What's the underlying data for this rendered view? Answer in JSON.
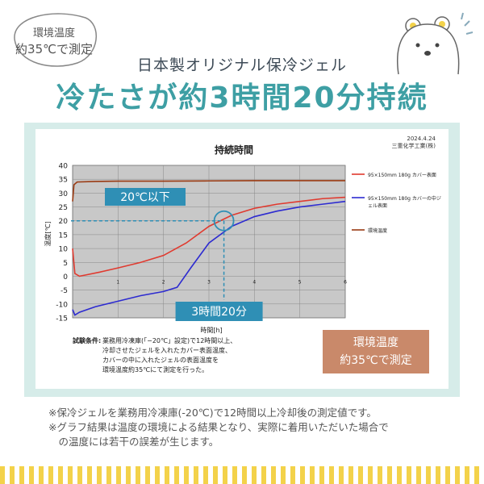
{
  "badge": {
    "line1": "環境温度",
    "line2": "約35℃で測定"
  },
  "header": {
    "subtitle": "日本製オリジナル保冷ジェル",
    "title": "冷たさが約3時間20分持続"
  },
  "chart_data": {
    "type": "line",
    "title": "持続時間",
    "date": "2024.4.24",
    "company": "三重化学工業(株)",
    "xlabel": "時間[h]",
    "ylabel": "温度[℃]",
    "xlim": [
      0,
      6
    ],
    "ylim": [
      -15,
      40
    ],
    "xticks": [
      1,
      2,
      3,
      4,
      5,
      6
    ],
    "yticks": [
      -15,
      -10,
      -5,
      0,
      5,
      10,
      15,
      20,
      25,
      30,
      35,
      40
    ],
    "grid": true,
    "legend_position": "right",
    "series": [
      {
        "name": "95×150mm 180g カバー表面",
        "color": "#e03a2f",
        "x": [
          0,
          0.05,
          0.15,
          0.3,
          0.6,
          1.0,
          1.5,
          2.0,
          2.5,
          3.0,
          3.5,
          4.0,
          4.5,
          5.0,
          5.5,
          6.0
        ],
        "y": [
          10,
          1,
          0,
          0.5,
          1.5,
          3,
          5,
          7.5,
          12,
          18,
          22,
          24.5,
          26,
          27,
          28,
          28.5
        ]
      },
      {
        "name": "95×150mm 180g カバーの中ジェル表面",
        "color": "#2d2bd0",
        "x": [
          0,
          0.05,
          0.15,
          0.5,
          1.0,
          1.5,
          2.0,
          2.3,
          2.6,
          3.0,
          3.5,
          4.0,
          4.5,
          5.0,
          5.5,
          6.0
        ],
        "y": [
          -12,
          -14,
          -13,
          -11,
          -9,
          -7,
          -5.5,
          -4,
          3,
          12,
          18,
          21.5,
          23.5,
          25,
          26,
          27
        ]
      },
      {
        "name": "環境温度",
        "color": "#9a3a12",
        "x": [
          0,
          0.03,
          0.1,
          0.5,
          1.0,
          2.0,
          3.0,
          4.0,
          5.0,
          6.0
        ],
        "y": [
          27,
          33,
          34,
          34.2,
          34.3,
          34.3,
          34.4,
          34.5,
          34.5,
          34.5
        ]
      }
    ],
    "annotations": [
      {
        "label": "20℃以下",
        "y": 20
      },
      {
        "label": "3時間20分",
        "x": 3.33
      }
    ],
    "test_conditions": {
      "label": "試験条件:",
      "lines": [
        "業務用冷凍庫(「−20℃」設定)で12時間以上、",
        "冷却させたジェルを入れたカバー表面温度、",
        "カバーの中に入れたジェルの表面温度を",
        "環境温度約35℃にて測定を行った。"
      ]
    }
  },
  "note_box": {
    "line1": "環境温度",
    "line2": "約35℃で測定"
  },
  "footnotes": [
    "※保冷ジェルを業務用冷凍庫(-20℃)で12時間以上冷却後の測定値です。",
    "※グラフ結果は温度の環境による結果となり、実際に着用いただいた場合で",
    "　の温度には若干の誤差が生じます。"
  ]
}
